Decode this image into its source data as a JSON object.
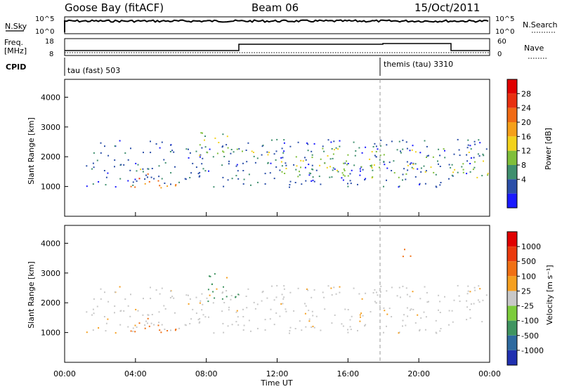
{
  "header": {
    "station": "Goose Bay (fitACF)",
    "beam": "Beam 06",
    "date": "15/Oct/2011"
  },
  "nsky_panel": {
    "left_label": "N.Sky",
    "right_label": "N.Search",
    "left_ticks": [
      "10^5",
      "10^0"
    ],
    "right_ticks": [
      "10^5",
      "10^0"
    ]
  },
  "freq_panel": {
    "left_label_line1": "Freq.",
    "left_label_line2": "[MHz]",
    "right_label": "Nave",
    "left_ticks": [
      "18",
      "8"
    ],
    "right_ticks": [
      "60",
      "0"
    ]
  },
  "cpid": {
    "label": "CPID",
    "modes": [
      "tau (fast) 503",
      "themis (tau) 3310"
    ]
  },
  "axes": {
    "xlabel": "Time UT",
    "xticks": [
      "00:00",
      "04:00",
      "08:00",
      "12:00",
      "16:00",
      "20:00",
      "00:00"
    ],
    "ylabel": "Slant Range [km]",
    "yticks": [
      "1000",
      "2000",
      "3000",
      "4000"
    ]
  },
  "power_scale": {
    "label": "Power [dB]",
    "ticks": [
      "4",
      "8",
      "12",
      "16",
      "20",
      "24",
      "28"
    ],
    "colors": [
      "#1a1aff",
      "#2b4fa8",
      "#3f8f6e",
      "#7fbf3a",
      "#f2d21c",
      "#f5a01a",
      "#f06a14",
      "#e83010",
      "#e00000"
    ]
  },
  "velocity_scale": {
    "label": "Velocity [m s⁻¹]",
    "ticks": [
      "1000",
      "500",
      "100",
      "25",
      "-25",
      "-100",
      "-500",
      "-1000"
    ],
    "colors": [
      "#2030b0",
      "#2e6aa0",
      "#3f9460",
      "#7ccc3c",
      "#c8c8c8",
      "#f5a020",
      "#f07014",
      "#ea3a0e",
      "#e00000"
    ]
  },
  "chart_data": {
    "type": "heatmap",
    "title": "Goose Bay (fitACF)",
    "xlabel": "Time UT",
    "ylabel": "Slant Range [km]",
    "xlim": [
      "00:00",
      "24:00"
    ],
    "ylim": [
      0,
      4600
    ],
    "cpid_changes": [
      {
        "time_ut": "00:00",
        "mode": "tau (fast) 503"
      },
      {
        "time_ut": "18:00",
        "mode": "themis (tau) 3310"
      }
    ],
    "regions_power": [
      {
        "t": [
          1.2,
          23.8
        ],
        "r": [
          1000,
          2600
        ],
        "power_db": 8
      },
      {
        "t": [
          3.6,
          6.5
        ],
        "r": [
          950,
          1450
        ],
        "power_db": 28
      },
      {
        "t": [
          3.6,
          6.5
        ],
        "r": [
          1450,
          1600
        ],
        "power_db": 16
      },
      {
        "t": [
          7.5,
          10.0
        ],
        "r": [
          2000,
          2900
        ],
        "power_db": 14
      },
      {
        "t": [
          10.5,
          24.0
        ],
        "r": [
          1300,
          2300
        ],
        "power_db": 16
      }
    ],
    "regions_velocity": [
      {
        "t": [
          1.2,
          23.8
        ],
        "r": [
          1000,
          2600
        ],
        "velocity_ms": 0
      },
      {
        "t": [
          3.6,
          6.5
        ],
        "r": [
          1000,
          1500
        ],
        "velocity_ms": -200
      },
      {
        "t": [
          8.0,
          10.0
        ],
        "r": [
          2000,
          3000
        ],
        "velocity_ms": 100
      },
      {
        "t": [
          18.5,
          19.5
        ],
        "r": [
          3500,
          3900
        ],
        "velocity_ms": -300
      }
    ]
  }
}
